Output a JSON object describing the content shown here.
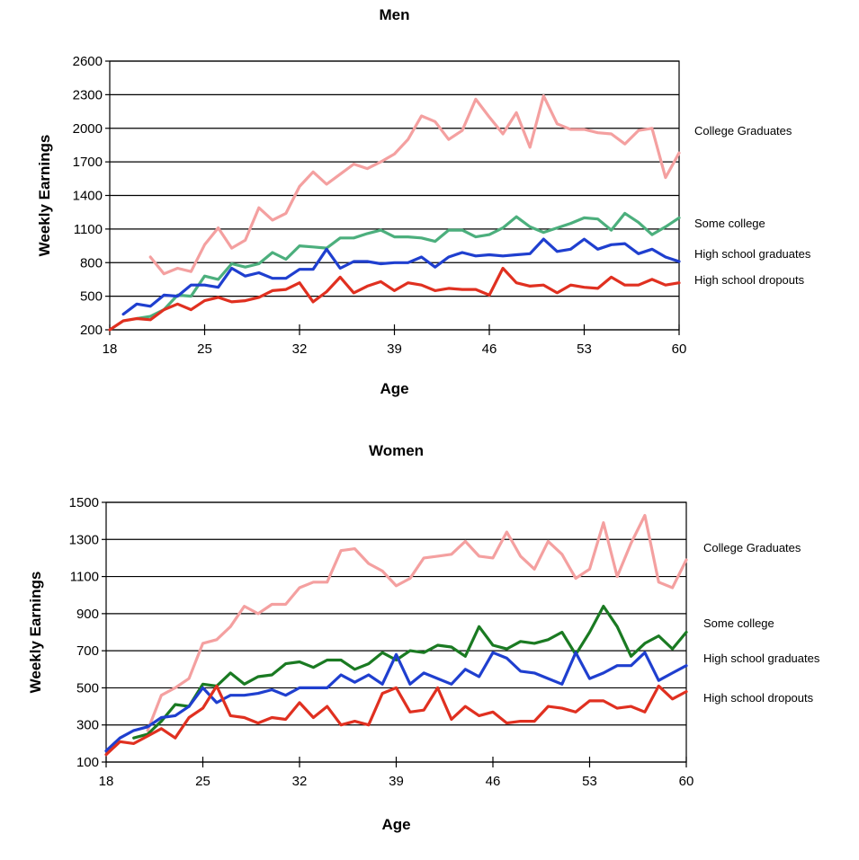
{
  "chart_data": [
    {
      "type": "line",
      "title": "Men",
      "xlabel": "Age",
      "ylabel": "Weekly Earnings",
      "xlim": [
        18,
        60
      ],
      "ylim": [
        200,
        2600
      ],
      "xticks": [
        18,
        25,
        32,
        39,
        46,
        53,
        60
      ],
      "yticks": [
        200,
        500,
        800,
        1100,
        1400,
        1700,
        2000,
        2300,
        2600
      ],
      "grid": "horizontal",
      "series": [
        {
          "name": "College Graduates",
          "color": "#f4a0a0",
          "x": [
            21,
            22,
            23,
            24,
            25,
            26,
            27,
            28,
            29,
            30,
            31,
            32,
            33,
            34,
            35,
            36,
            37,
            38,
            39,
            40,
            41,
            42,
            43,
            44,
            45,
            46,
            47,
            48,
            49,
            50,
            51,
            52,
            53,
            54,
            55,
            56,
            57,
            58,
            59,
            60
          ],
          "y": [
            850,
            700,
            750,
            720,
            960,
            1110,
            930,
            1000,
            1290,
            1180,
            1240,
            1480,
            1610,
            1500,
            1590,
            1680,
            1640,
            1700,
            1770,
            1900,
            2110,
            2060,
            1900,
            1980,
            2260,
            2100,
            1950,
            2140,
            1830,
            2290,
            2040,
            1990,
            1990,
            1960,
            1950,
            1860,
            1980,
            2000,
            1560,
            1780
          ]
        },
        {
          "name": "Some college",
          "color": "#4caf7d",
          "x": [
            20,
            21,
            22,
            23,
            24,
            25,
            26,
            27,
            28,
            29,
            30,
            31,
            32,
            33,
            34,
            35,
            36,
            37,
            38,
            39,
            40,
            41,
            42,
            43,
            44,
            45,
            46,
            47,
            48,
            49,
            50,
            51,
            52,
            53,
            54,
            55,
            56,
            57,
            58,
            59,
            60
          ],
          "y": [
            300,
            320,
            380,
            510,
            500,
            680,
            650,
            790,
            760,
            790,
            890,
            830,
            950,
            940,
            930,
            1020,
            1020,
            1060,
            1090,
            1030,
            1030,
            1020,
            990,
            1090,
            1090,
            1030,
            1050,
            1110,
            1210,
            1120,
            1070,
            1110,
            1150,
            1200,
            1190,
            1090,
            1240,
            1160,
            1050,
            1120,
            1200
          ]
        },
        {
          "name": "High school graduates",
          "color": "#1f3fcf",
          "x": [
            19,
            20,
            21,
            22,
            23,
            24,
            25,
            26,
            27,
            28,
            29,
            30,
            31,
            32,
            33,
            34,
            35,
            36,
            37,
            38,
            39,
            40,
            41,
            42,
            43,
            44,
            45,
            46,
            47,
            48,
            49,
            50,
            51,
            52,
            53,
            54,
            55,
            56,
            57,
            58,
            59,
            60
          ],
          "y": [
            340,
            430,
            410,
            510,
            500,
            600,
            600,
            580,
            750,
            680,
            710,
            660,
            660,
            740,
            740,
            920,
            750,
            810,
            810,
            790,
            800,
            800,
            850,
            760,
            850,
            890,
            860,
            870,
            860,
            870,
            880,
            1010,
            900,
            920,
            1010,
            920,
            960,
            970,
            880,
            920,
            850,
            810
          ]
        },
        {
          "name": "High school dropouts",
          "color": "#e03020",
          "x": [
            18,
            19,
            20,
            21,
            22,
            23,
            24,
            25,
            26,
            27,
            28,
            29,
            30,
            31,
            32,
            33,
            34,
            35,
            36,
            37,
            38,
            39,
            40,
            41,
            42,
            43,
            44,
            45,
            46,
            47,
            48,
            49,
            50,
            51,
            52,
            53,
            54,
            55,
            56,
            57,
            58,
            59,
            60
          ],
          "y": [
            200,
            280,
            300,
            290,
            380,
            430,
            380,
            460,
            490,
            450,
            460,
            490,
            550,
            560,
            620,
            450,
            540,
            670,
            530,
            590,
            630,
            550,
            620,
            600,
            550,
            570,
            560,
            560,
            510,
            750,
            620,
            590,
            600,
            530,
            600,
            580,
            570,
            670,
            600,
            600,
            650,
            600,
            620
          ]
        }
      ]
    },
    {
      "type": "line",
      "title": "Women",
      "xlabel": "Age",
      "ylabel": "Weekly Earnings",
      "xlim": [
        18,
        60
      ],
      "ylim": [
        100,
        1500
      ],
      "xticks": [
        18,
        25,
        32,
        39,
        46,
        53,
        60
      ],
      "yticks": [
        100,
        300,
        500,
        700,
        900,
        1100,
        1300,
        1500
      ],
      "grid": "horizontal",
      "series": [
        {
          "name": "College Graduates",
          "color": "#f4a0a0",
          "x": [
            21,
            22,
            23,
            24,
            25,
            26,
            27,
            28,
            29,
            30,
            31,
            32,
            33,
            34,
            35,
            36,
            37,
            38,
            39,
            40,
            41,
            42,
            43,
            44,
            45,
            46,
            47,
            48,
            49,
            50,
            51,
            52,
            53,
            54,
            55,
            56,
            57,
            58,
            59,
            60
          ],
          "y": [
            270,
            460,
            500,
            550,
            740,
            760,
            830,
            940,
            900,
            950,
            950,
            1040,
            1070,
            1070,
            1240,
            1250,
            1170,
            1130,
            1050,
            1090,
            1200,
            1210,
            1220,
            1290,
            1210,
            1200,
            1340,
            1210,
            1140,
            1290,
            1220,
            1090,
            1140,
            1390,
            1100,
            1280,
            1430,
            1070,
            1040,
            1190
          ]
        },
        {
          "name": "Some college",
          "color": "#1a7a22",
          "x": [
            20,
            21,
            22,
            23,
            24,
            25,
            26,
            27,
            28,
            29,
            30,
            31,
            32,
            33,
            34,
            35,
            36,
            37,
            38,
            39,
            40,
            41,
            42,
            43,
            44,
            45,
            46,
            47,
            48,
            49,
            50,
            51,
            52,
            53,
            54,
            55,
            56,
            57,
            58,
            59,
            60
          ],
          "y": [
            230,
            250,
            320,
            410,
            400,
            520,
            510,
            580,
            520,
            560,
            570,
            630,
            640,
            610,
            650,
            650,
            600,
            630,
            690,
            650,
            700,
            690,
            730,
            720,
            670,
            830,
            730,
            710,
            750,
            740,
            760,
            800,
            680,
            800,
            940,
            830,
            670,
            740,
            780,
            710,
            800
          ]
        },
        {
          "name": "High school graduates",
          "color": "#1f3fcf",
          "x": [
            18,
            19,
            20,
            21,
            22,
            23,
            24,
            25,
            26,
            27,
            28,
            29,
            30,
            31,
            32,
            33,
            34,
            35,
            36,
            37,
            38,
            39,
            40,
            41,
            42,
            43,
            44,
            45,
            46,
            47,
            48,
            49,
            50,
            51,
            52,
            53,
            54,
            55,
            56,
            57,
            58,
            59,
            60
          ],
          "y": [
            160,
            230,
            270,
            290,
            340,
            350,
            400,
            500,
            420,
            460,
            460,
            470,
            490,
            460,
            500,
            500,
            500,
            570,
            530,
            570,
            520,
            680,
            520,
            580,
            550,
            520,
            600,
            560,
            690,
            660,
            590,
            580,
            550,
            520,
            690,
            550,
            580,
            620,
            620,
            690,
            540,
            580,
            620
          ]
        },
        {
          "name": "High school dropouts",
          "color": "#e03020",
          "x": [
            18,
            19,
            20,
            21,
            22,
            23,
            24,
            25,
            26,
            27,
            28,
            29,
            30,
            31,
            32,
            33,
            34,
            35,
            36,
            37,
            38,
            39,
            40,
            41,
            42,
            43,
            44,
            45,
            46,
            47,
            48,
            49,
            50,
            51,
            52,
            53,
            54,
            55,
            56,
            57,
            58,
            59,
            60
          ],
          "y": [
            140,
            210,
            200,
            240,
            280,
            230,
            340,
            390,
            510,
            350,
            340,
            310,
            340,
            330,
            420,
            340,
            400,
            300,
            320,
            300,
            470,
            500,
            370,
            380,
            500,
            330,
            400,
            350,
            370,
            310,
            320,
            320,
            400,
            390,
            370,
            430,
            430,
            390,
            400,
            370,
            510,
            440,
            480
          ]
        }
      ]
    }
  ]
}
